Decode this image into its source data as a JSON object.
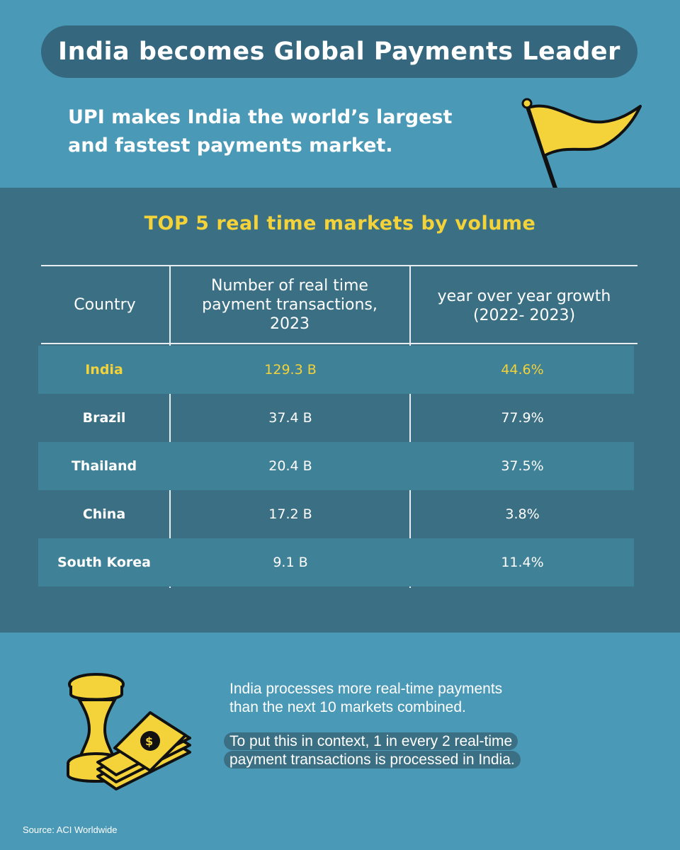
{
  "header": {
    "title": "India becomes Global Payments Leader",
    "subtitle_line1": "UPI makes India the world’s largest",
    "subtitle_line2": "and fastest payments market."
  },
  "table": {
    "title": "TOP 5 real time markets by volume",
    "columns": {
      "country": "Country",
      "volume_line1": "Number of real time",
      "volume_line2": "payment transactions,",
      "volume_line3": "2023",
      "growth_line1": "year over year growth",
      "growth_line2": "(2022- 2023)"
    },
    "rows": [
      {
        "country": "India",
        "volume": "129.3 B",
        "growth": "44.6%"
      },
      {
        "country": "Brazil",
        "volume": "37.4 B",
        "growth": "77.9%"
      },
      {
        "country": "Thailand",
        "volume": "20.4 B",
        "growth": "37.5%"
      },
      {
        "country": "China",
        "volume": "17.2 B",
        "growth": "3.8%"
      },
      {
        "country": "South Korea",
        "volume": "9.1 B",
        "growth": "11.4%"
      }
    ]
  },
  "info": {
    "line1": "India processes more real-time payments",
    "line2": "than the next 10 markets combined.",
    "line3": "To put this in context, 1 in every 2 real-time",
    "line4": "payment transactions is processed in India."
  },
  "source": "Source: ACI Worldwide",
  "icons": {
    "flag": "flag-icon",
    "money": "coins-and-cash-icon"
  },
  "colors": {
    "background": "#4a99b6",
    "band": "#3b7084",
    "accent": "#f3d23a",
    "pill": "#35677f"
  }
}
